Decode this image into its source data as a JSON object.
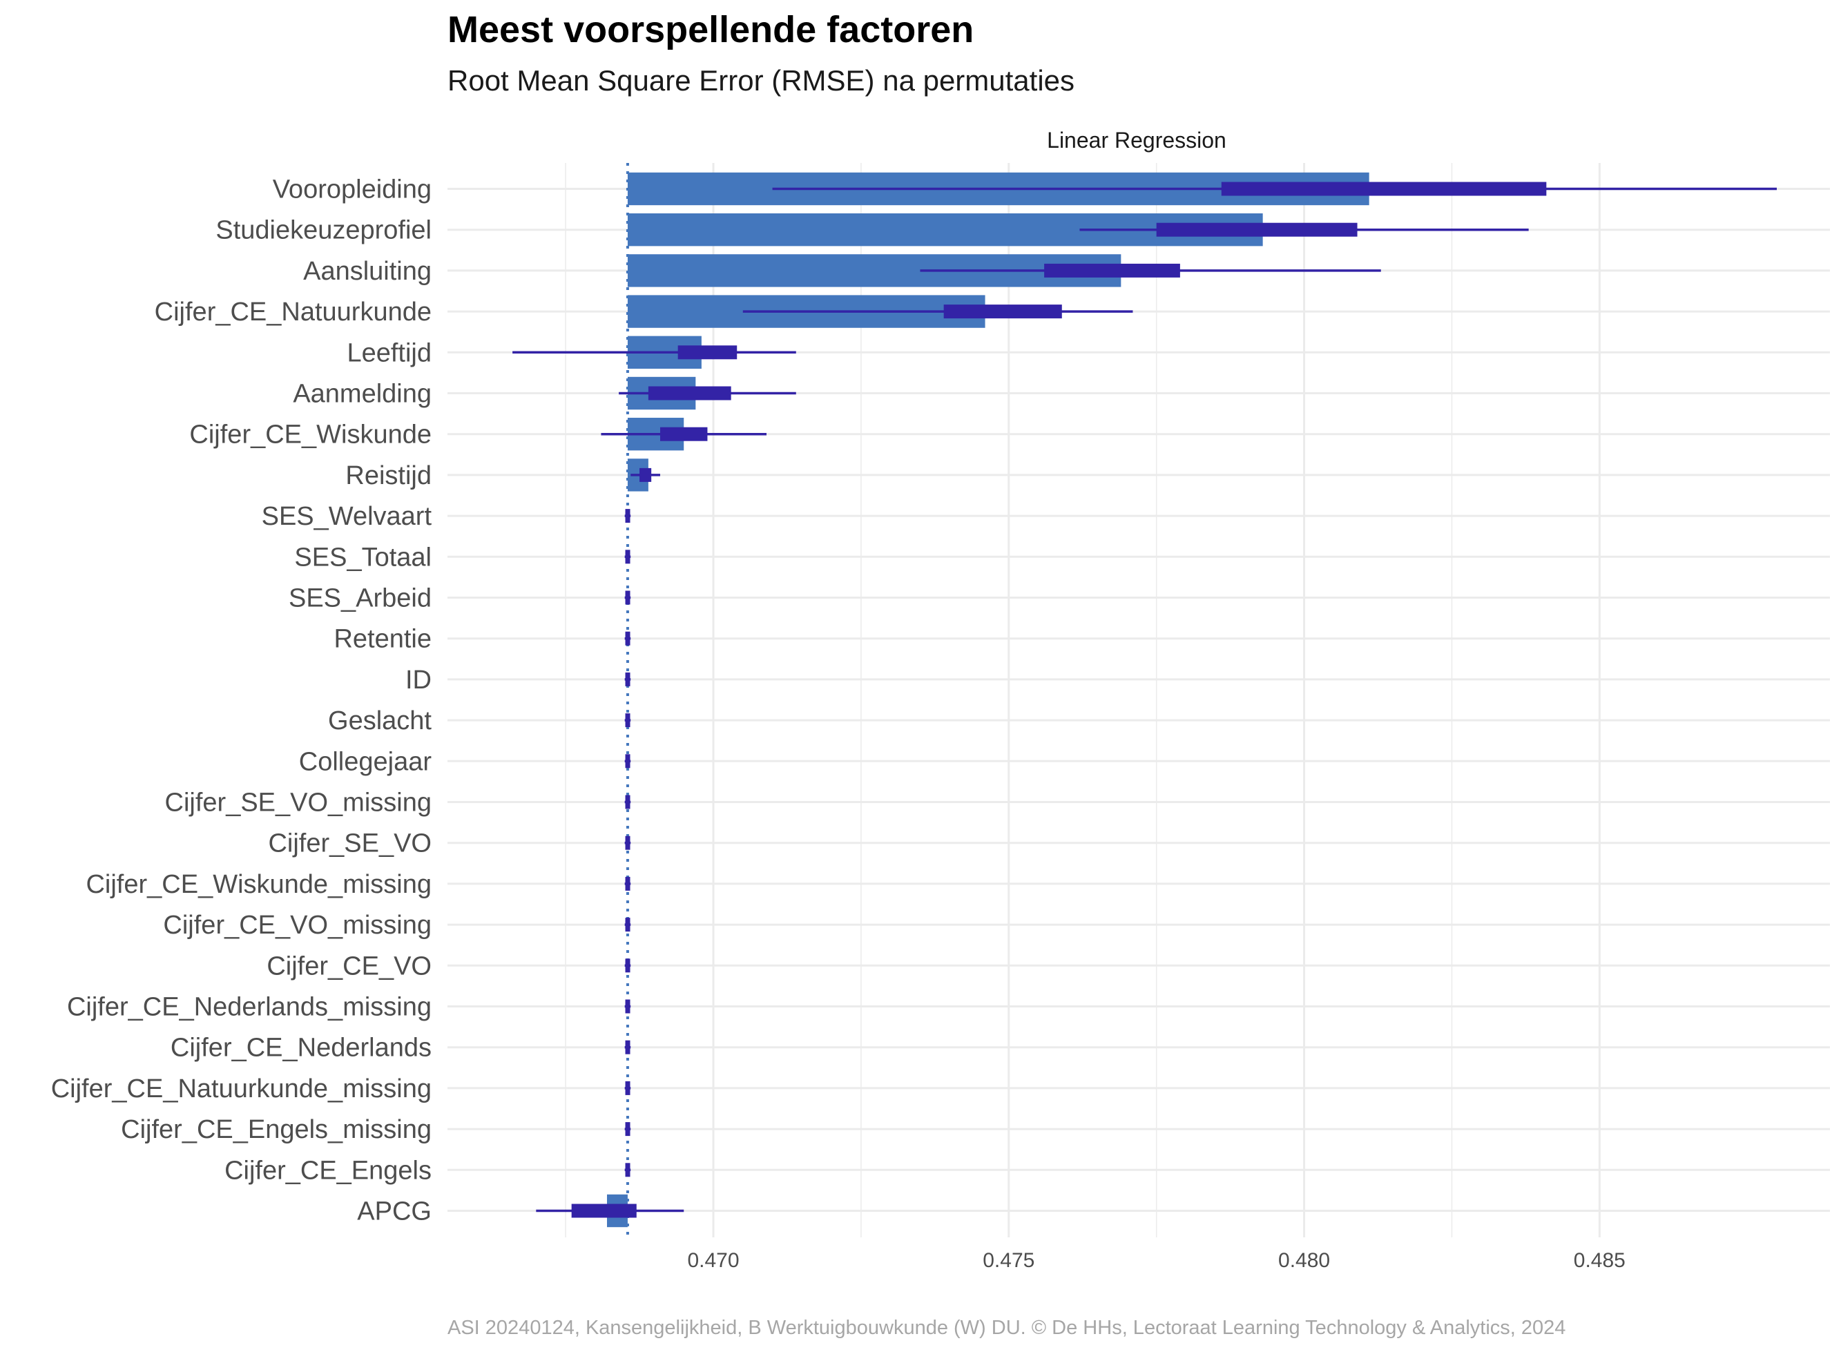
{
  "chart_data": {
    "type": "bar",
    "title": "Meest voorspellende factoren",
    "subtitle": "Root Mean Square Error (RMSE) na permutaties",
    "facet_label": "Linear Regression",
    "caption": "ASI 20240124, Kansengelijkheid, B Werktuigbouwkunde (W) DU. © De HHs, Lectoraat Learning Technology & Analytics, 2024",
    "orientation": "horizontal",
    "baseline": 0.46855,
    "xlim": [
      0.4655,
      0.4889
    ],
    "x_ticks": [
      0.47,
      0.475,
      0.48,
      0.485
    ],
    "x_tick_labels": [
      "0.470",
      "0.475",
      "0.480",
      "0.485"
    ],
    "grid": true,
    "colors": {
      "bar": "#4477BD",
      "box": "#3323A6",
      "baseline": "#4477BD",
      "grid": "#EBEBEB"
    },
    "categories": [
      "Vooropleiding",
      "Studiekeuzeprofiel",
      "Aansluiting",
      "Cijfer_CE_Natuurkunde",
      "Leeftijd",
      "Aanmelding",
      "Cijfer_CE_Wiskunde",
      "Reistijd",
      "SES_Welvaart",
      "SES_Totaal",
      "SES_Arbeid",
      "Retentie",
      "ID",
      "Geslacht",
      "Collegejaar",
      "Cijfer_SE_VO_missing",
      "Cijfer_SE_VO",
      "Cijfer_CE_Wiskunde_missing",
      "Cijfer_CE_VO_missing",
      "Cijfer_CE_VO",
      "Cijfer_CE_Nederlands_missing",
      "Cijfer_CE_Nederlands",
      "Cijfer_CE_Natuurkunde_missing",
      "Cijfer_CE_Engels_missing",
      "Cijfer_CE_Engels",
      "APCG"
    ],
    "values": [
      0.4811,
      0.4793,
      0.4769,
      0.4746,
      0.4698,
      0.4697,
      0.4695,
      0.4689,
      0.46855,
      0.46855,
      0.46855,
      0.46855,
      0.46855,
      0.46855,
      0.46855,
      0.46855,
      0.46855,
      0.46855,
      0.46855,
      0.46855,
      0.46855,
      0.46855,
      0.46855,
      0.46855,
      0.46855,
      0.4682
    ],
    "boxes": [
      {
        "min": 0.471,
        "q1": 0.4786,
        "q3": 0.4841,
        "max": 0.488
      },
      {
        "min": 0.4762,
        "q1": 0.4775,
        "q3": 0.4809,
        "max": 0.4838
      },
      {
        "min": 0.4735,
        "q1": 0.4756,
        "q3": 0.4779,
        "max": 0.4813
      },
      {
        "min": 0.4705,
        "q1": 0.4739,
        "q3": 0.4759,
        "max": 0.4771
      },
      {
        "min": 0.4666,
        "q1": 0.4694,
        "q3": 0.4704,
        "max": 0.4714
      },
      {
        "min": 0.4684,
        "q1": 0.4689,
        "q3": 0.4703,
        "max": 0.4714
      },
      {
        "min": 0.4681,
        "q1": 0.4691,
        "q3": 0.4699,
        "max": 0.4709
      },
      {
        "min": 0.4686,
        "q1": 0.46875,
        "q3": 0.46895,
        "max": 0.4691
      },
      {
        "min": 0.4685,
        "q1": 0.46851,
        "q3": 0.46859,
        "max": 0.4686
      },
      {
        "min": 0.4685,
        "q1": 0.46851,
        "q3": 0.46859,
        "max": 0.4686
      },
      {
        "min": 0.4685,
        "q1": 0.46851,
        "q3": 0.46859,
        "max": 0.4686
      },
      {
        "min": 0.4685,
        "q1": 0.46851,
        "q3": 0.46859,
        "max": 0.4686
      },
      {
        "min": 0.4685,
        "q1": 0.46851,
        "q3": 0.46859,
        "max": 0.4686
      },
      {
        "min": 0.4685,
        "q1": 0.46851,
        "q3": 0.46859,
        "max": 0.4686
      },
      {
        "min": 0.4685,
        "q1": 0.46851,
        "q3": 0.46859,
        "max": 0.4686
      },
      {
        "min": 0.4685,
        "q1": 0.46851,
        "q3": 0.46859,
        "max": 0.4686
      },
      {
        "min": 0.4685,
        "q1": 0.46851,
        "q3": 0.46859,
        "max": 0.4686
      },
      {
        "min": 0.4685,
        "q1": 0.46851,
        "q3": 0.46859,
        "max": 0.4686
      },
      {
        "min": 0.4685,
        "q1": 0.46851,
        "q3": 0.46859,
        "max": 0.4686
      },
      {
        "min": 0.4685,
        "q1": 0.46851,
        "q3": 0.46859,
        "max": 0.4686
      },
      {
        "min": 0.4685,
        "q1": 0.46851,
        "q3": 0.46859,
        "max": 0.4686
      },
      {
        "min": 0.4685,
        "q1": 0.46851,
        "q3": 0.46859,
        "max": 0.4686
      },
      {
        "min": 0.4685,
        "q1": 0.46851,
        "q3": 0.46859,
        "max": 0.4686
      },
      {
        "min": 0.4685,
        "q1": 0.46851,
        "q3": 0.46859,
        "max": 0.4686
      },
      {
        "min": 0.4685,
        "q1": 0.46851,
        "q3": 0.46859,
        "max": 0.4686
      },
      {
        "min": 0.467,
        "q1": 0.4676,
        "q3": 0.4687,
        "max": 0.4695
      }
    ]
  }
}
